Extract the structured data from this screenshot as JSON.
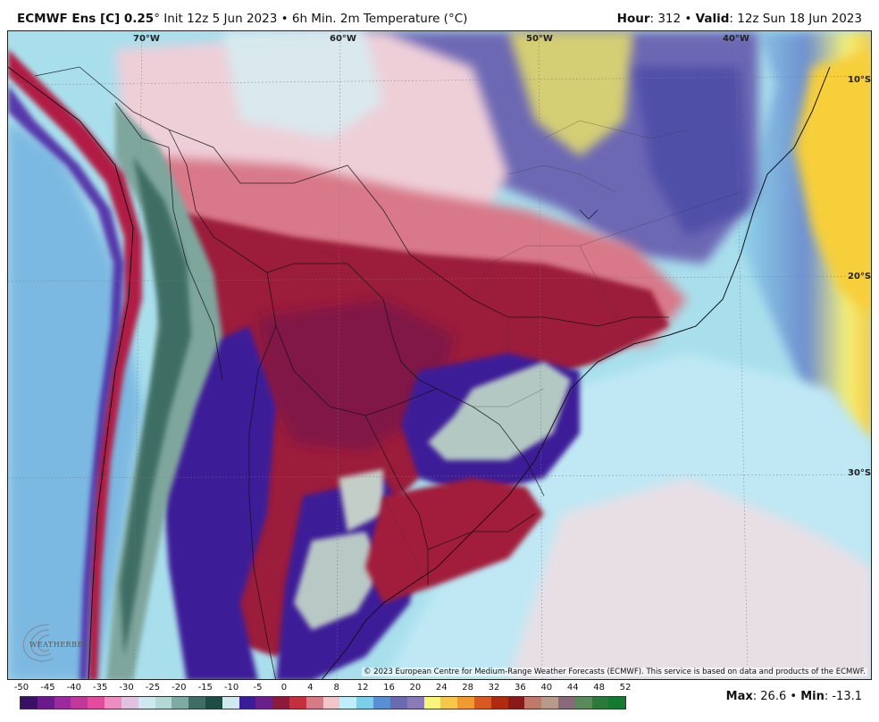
{
  "header": {
    "model": "ECMWF Ens [C] 0.25",
    "degree": "°",
    "init": "Init 12z 5 Jun 2023",
    "bullet": "•",
    "field": "6h Min. 2m Temperature (°C)",
    "hour_label": "Hour",
    "hour_value": ": 312",
    "valid_label": "Valid",
    "valid_value": ": 12z Sun 18 Jun 2023"
  },
  "map": {
    "longitude_labels": [
      "70°W",
      "60°W",
      "50°W",
      "40°W"
    ],
    "latitude_labels": [
      "10°S",
      "20°S",
      "30°S"
    ],
    "copyright": "© 2023 European Centre for Medium-Range Weather Forecasts (ECMWF). This service is based on data and products of the ECMWF.",
    "logo_text": "WEATHERBELL"
  },
  "legend": {
    "ticks": [
      "-50",
      "-45",
      "-40",
      "-35",
      "-30",
      "-25",
      "-20",
      "-15",
      "-10",
      "-5",
      "0",
      "4",
      "8",
      "12",
      "16",
      "20",
      "24",
      "28",
      "32",
      "36",
      "40",
      "44",
      "48",
      "52"
    ],
    "colors": [
      "#3a1066",
      "#6a1a8c",
      "#9b2a9e",
      "#c2389a",
      "#e34c9c",
      "#ef8cc0",
      "#e0c2e2",
      "#cfe8f0",
      "#b4d8d6",
      "#7fa9a3",
      "#3d6e66",
      "#1d4d45",
      "#cfe9ee",
      "#3a1c98",
      "#6b1f8a",
      "#8c1a3a",
      "#c2303d",
      "#d87a85",
      "#f2c6c8",
      "#bfeefa",
      "#7ccfe8",
      "#5a8fd6",
      "#6a6ab0",
      "#8a7ab8",
      "#f8f57a",
      "#f5c84a",
      "#f09a30",
      "#d85a20",
      "#b02a10",
      "#8a1a1a",
      "#c07a6a",
      "#b89a8a",
      "#8a6a7a",
      "#5a8a5a",
      "#2a7a3a",
      "#137a30"
    ],
    "max_label": "Max",
    "max_value": ": 26.6",
    "min_label": "Min",
    "min_value": ": -13.1"
  }
}
